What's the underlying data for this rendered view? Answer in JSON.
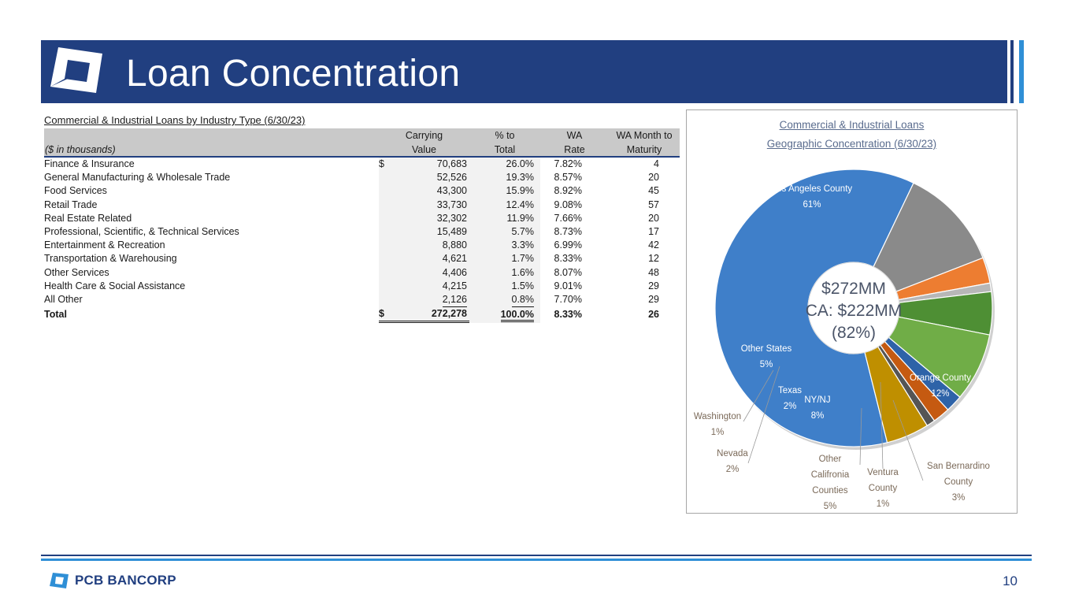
{
  "slide": {
    "title": "Loan Concentration",
    "page_number": "10",
    "brand": "PCB BANCORP"
  },
  "table": {
    "caption": "Commercial & Industrial Loans by Industry Type (6/30/23)",
    "unit_label": "($ in thousands)",
    "headers": {
      "carrying_1": "Carrying",
      "carrying_2": "Value",
      "pct_1": "% to",
      "pct_2": "Total",
      "rate_1": "WA",
      "rate_2": "Rate",
      "mat_1": "WA Month to",
      "mat_2": "Maturity"
    },
    "currency_symbol": "$",
    "rows": [
      {
        "label": "Finance & Insurance",
        "value": "70,683",
        "pct": "26.0%",
        "rate": "7.82%",
        "maturity": "4"
      },
      {
        "label": "General Manufacturing & Wholesale Trade",
        "value": "52,526",
        "pct": "19.3%",
        "rate": "8.57%",
        "maturity": "20"
      },
      {
        "label": "Food Services",
        "value": "43,300",
        "pct": "15.9%",
        "rate": "8.92%",
        "maturity": "45"
      },
      {
        "label": "Retail Trade",
        "value": "33,730",
        "pct": "12.4%",
        "rate": "9.08%",
        "maturity": "57"
      },
      {
        "label": "Real Estate Related",
        "value": "32,302",
        "pct": "11.9%",
        "rate": "7.66%",
        "maturity": "20"
      },
      {
        "label": "Professional, Scientific, & Technical Services",
        "value": "15,489",
        "pct": "5.7%",
        "rate": "8.73%",
        "maturity": "17"
      },
      {
        "label": "Entertainment & Recreation",
        "value": "8,880",
        "pct": "3.3%",
        "rate": "6.99%",
        "maturity": "42"
      },
      {
        "label": "Transportation & Warehousing",
        "value": "4,621",
        "pct": "1.7%",
        "rate": "8.33%",
        "maturity": "12"
      },
      {
        "label": "Other Services",
        "value": "4,406",
        "pct": "1.6%",
        "rate": "8.07%",
        "maturity": "48"
      },
      {
        "label": "Health Care & Social Assistance",
        "value": "4,215",
        "pct": "1.5%",
        "rate": "9.01%",
        "maturity": "29"
      },
      {
        "label": "All Other",
        "value": "2,126",
        "pct": "0.8%",
        "rate": "7.70%",
        "maturity": "29"
      }
    ],
    "total": {
      "label": "Total",
      "value": "272,278",
      "pct": "100.0%",
      "rate": "8.33%",
      "maturity": "26"
    }
  },
  "chart_data": {
    "type": "pie",
    "title": "Commercial & Industrial Loans",
    "subtitle": "Geographic Concentration (6/30/23)",
    "center_text": [
      "$272MM",
      "CA: $222MM",
      "(82%)"
    ],
    "slices": [
      {
        "label": [
          "Los Angeles County"
        ],
        "value": 61,
        "display": "61%",
        "color": "#3f7fc9"
      },
      {
        "label": [
          "Orange County"
        ],
        "value": 12,
        "display": "12%",
        "color": "#8a8a8a"
      },
      {
        "label": [
          "San Bernardino",
          "County"
        ],
        "value": 3,
        "display": "3%",
        "color": "#ed7d31"
      },
      {
        "label": [
          "Ventura",
          "County"
        ],
        "value": 1,
        "display": "1%",
        "color": "#b7b7b7"
      },
      {
        "label": [
          "Other",
          "Califronia",
          "Counties"
        ],
        "value": 5,
        "display": "5%",
        "color": "#4e8f34"
      },
      {
        "label": [
          "NY/NJ"
        ],
        "value": 8,
        "display": "8%",
        "color": "#70ad47"
      },
      {
        "label": [
          "Texas"
        ],
        "value": 2,
        "display": "2%",
        "color": "#2e63a8"
      },
      {
        "label": [
          "Nevada"
        ],
        "value": 2,
        "display": "2%",
        "color": "#c55a11"
      },
      {
        "label": [
          "Washington"
        ],
        "value": 1,
        "display": "1%",
        "color": "#555555"
      },
      {
        "label": [
          "Other States"
        ],
        "value": 5,
        "display": "5%",
        "color": "#bf8f00"
      }
    ]
  }
}
